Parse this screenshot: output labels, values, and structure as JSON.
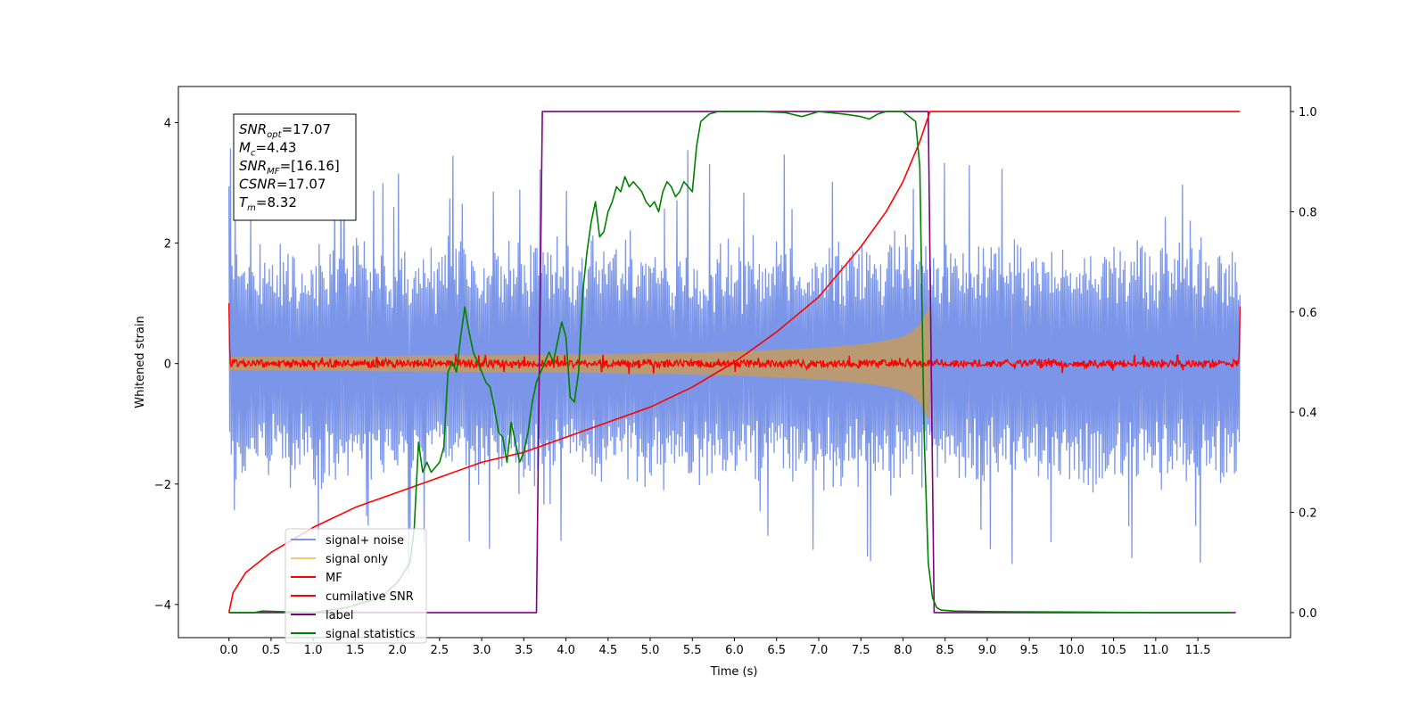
{
  "chart_data": {
    "type": "line",
    "title": "",
    "xlabel": "Time (s)",
    "ylabel_left": "Whitened strain",
    "ylabel_right": "",
    "xlim": [
      -0.6,
      12.6
    ],
    "ylim_left": [
      -4.55,
      4.6
    ],
    "ylim_right": [
      -0.05,
      1.05
    ],
    "x_ticks": [
      0.0,
      0.5,
      1.0,
      1.5,
      2.0,
      2.5,
      3.0,
      3.5,
      4.0,
      4.5,
      5.0,
      5.5,
      6.0,
      6.5,
      7.0,
      7.5,
      8.0,
      8.5,
      9.0,
      9.5,
      10.0,
      10.5,
      11.0,
      11.5
    ],
    "x_tick_labels": [
      "0.0",
      "0.5",
      "1.0",
      "1.5",
      "2.0",
      "2.5",
      "3.0",
      "3.5",
      "4.0",
      "4.5",
      "5.0",
      "5.5",
      "6.0",
      "6.5",
      "7.0",
      "7.5",
      "8.0",
      "8.5",
      "9.0",
      "9.5",
      "10.0",
      "10.5",
      "11.0",
      "11.5"
    ],
    "y_left_ticks": [
      -4,
      -2,
      0,
      2,
      4
    ],
    "y_left_tick_labels": [
      "−4",
      "−2",
      "0",
      "2",
      "4"
    ],
    "y_right_ticks": [
      0.0,
      0.2,
      0.4,
      0.6,
      0.8,
      1.0
    ],
    "y_right_tick_labels": [
      "0.0",
      "0.2",
      "0.4",
      "0.6",
      "0.8",
      "1.0"
    ],
    "grid": false,
    "legend_placement": "lower-left",
    "annotation": {
      "lines": [
        {
          "base": "SNR",
          "sub": "opt",
          "value": "=17.07"
        },
        {
          "base": "M",
          "sub": "c",
          "value": "=4.43"
        },
        {
          "base": "SNR",
          "sub": "MF",
          "value": "=[16.16]"
        },
        {
          "base": "CSNR",
          "sub": "",
          "value": "=17.07"
        },
        {
          "base": "T",
          "sub": "m",
          "value": "=8.32"
        }
      ]
    },
    "series": [
      {
        "name": "signal+ noise",
        "axis": "left",
        "color": "#7b96e8",
        "kind": "noise_band",
        "x_range": [
          0.0,
          12.0
        ],
        "amplitude_typical": 2.2,
        "amplitude_peak": 4.15
      },
      {
        "name": "signal only",
        "axis": "left",
        "color": "#f5c87a",
        "fill_color": "#b99a72",
        "kind": "chirp_envelope",
        "x_range": [
          0.0,
          8.32
        ],
        "envelope": {
          "x": [
            0.0,
            1.0,
            2.0,
            3.0,
            4.0,
            5.0,
            6.0,
            7.0,
            7.5,
            7.8,
            8.0,
            8.1,
            8.2,
            8.28,
            8.32
          ],
          "y": [
            0.11,
            0.12,
            0.13,
            0.14,
            0.15,
            0.17,
            0.2,
            0.26,
            0.32,
            0.38,
            0.45,
            0.52,
            0.65,
            0.85,
            0.95
          ]
        }
      },
      {
        "name": "MF",
        "axis": "left",
        "color": "#ff0000",
        "kind": "noisy_line",
        "x_range": [
          0.0,
          12.0
        ],
        "amplitude": 0.08,
        "start_spike": 1.0,
        "end_spike": 0.95
      },
      {
        "name": "cumilative SNR",
        "axis": "right",
        "color": "#ff0000",
        "x": [
          0.0,
          0.05,
          0.2,
          0.5,
          1.0,
          1.5,
          2.0,
          2.5,
          3.0,
          3.5,
          4.0,
          4.5,
          5.0,
          5.5,
          6.0,
          6.5,
          7.0,
          7.5,
          7.8,
          8.0,
          8.1,
          8.2,
          8.3,
          8.32,
          12.0
        ],
        "y": [
          0.0,
          0.04,
          0.08,
          0.12,
          0.17,
          0.21,
          0.24,
          0.27,
          0.3,
          0.32,
          0.35,
          0.38,
          0.41,
          0.45,
          0.5,
          0.56,
          0.63,
          0.73,
          0.8,
          0.86,
          0.9,
          0.94,
          0.99,
          1.0,
          1.0
        ]
      },
      {
        "name": "label",
        "axis": "right",
        "color": "#800080",
        "x": [
          0.0,
          3.65,
          3.72,
          8.3,
          8.37,
          11.95
        ],
        "y": [
          0.0,
          0.0,
          1.0,
          1.0,
          0.0,
          0.0
        ]
      },
      {
        "name": "signal statistics",
        "axis": "right",
        "color": "#008000",
        "x": [
          0.0,
          0.3,
          0.4,
          0.6,
          1.0,
          1.4,
          1.8,
          2.0,
          2.15,
          2.2,
          2.25,
          2.3,
          2.35,
          2.4,
          2.45,
          2.5,
          2.55,
          2.6,
          2.65,
          2.7,
          2.75,
          2.8,
          2.85,
          2.9,
          2.95,
          3.0,
          3.05,
          3.1,
          3.15,
          3.2,
          3.25,
          3.3,
          3.35,
          3.4,
          3.45,
          3.5,
          3.55,
          3.6,
          3.65,
          3.7,
          3.75,
          3.8,
          3.85,
          3.9,
          3.95,
          4.0,
          4.05,
          4.1,
          4.15,
          4.2,
          4.25,
          4.3,
          4.35,
          4.4,
          4.45,
          4.5,
          4.55,
          4.6,
          4.65,
          4.7,
          4.75,
          4.8,
          4.85,
          4.9,
          4.95,
          5.0,
          5.05,
          5.1,
          5.15,
          5.2,
          5.25,
          5.3,
          5.35,
          5.4,
          5.45,
          5.5,
          5.55,
          5.6,
          5.7,
          5.8,
          6.0,
          6.3,
          6.6,
          6.8,
          7.0,
          7.3,
          7.5,
          7.6,
          7.7,
          7.8,
          8.0,
          8.15,
          8.2,
          8.25,
          8.3,
          8.35,
          8.4,
          8.45,
          8.6,
          9.0,
          10.0,
          11.0,
          11.9
        ],
        "y": [
          0.0,
          0.0,
          0.003,
          0.002,
          0.0,
          0.01,
          0.03,
          0.06,
          0.1,
          0.17,
          0.34,
          0.28,
          0.3,
          0.28,
          0.29,
          0.3,
          0.33,
          0.48,
          0.5,
          0.48,
          0.55,
          0.61,
          0.56,
          0.52,
          0.5,
          0.48,
          0.46,
          0.45,
          0.41,
          0.36,
          0.35,
          0.3,
          0.38,
          0.34,
          0.3,
          0.32,
          0.36,
          0.42,
          0.46,
          0.48,
          0.5,
          0.52,
          0.5,
          0.54,
          0.58,
          0.55,
          0.43,
          0.42,
          0.48,
          0.64,
          0.72,
          0.78,
          0.82,
          0.75,
          0.76,
          0.8,
          0.82,
          0.85,
          0.84,
          0.87,
          0.85,
          0.86,
          0.85,
          0.84,
          0.82,
          0.81,
          0.82,
          0.8,
          0.84,
          0.86,
          0.85,
          0.83,
          0.84,
          0.86,
          0.85,
          0.84,
          0.93,
          0.98,
          0.995,
          1.0,
          1.0,
          1.0,
          0.998,
          0.99,
          1.0,
          0.995,
          0.99,
          0.985,
          0.995,
          1.0,
          1.0,
          0.98,
          0.89,
          0.36,
          0.1,
          0.03,
          0.01,
          0.005,
          0.003,
          0.002,
          0.001,
          0.0,
          0.0
        ]
      }
    ]
  }
}
